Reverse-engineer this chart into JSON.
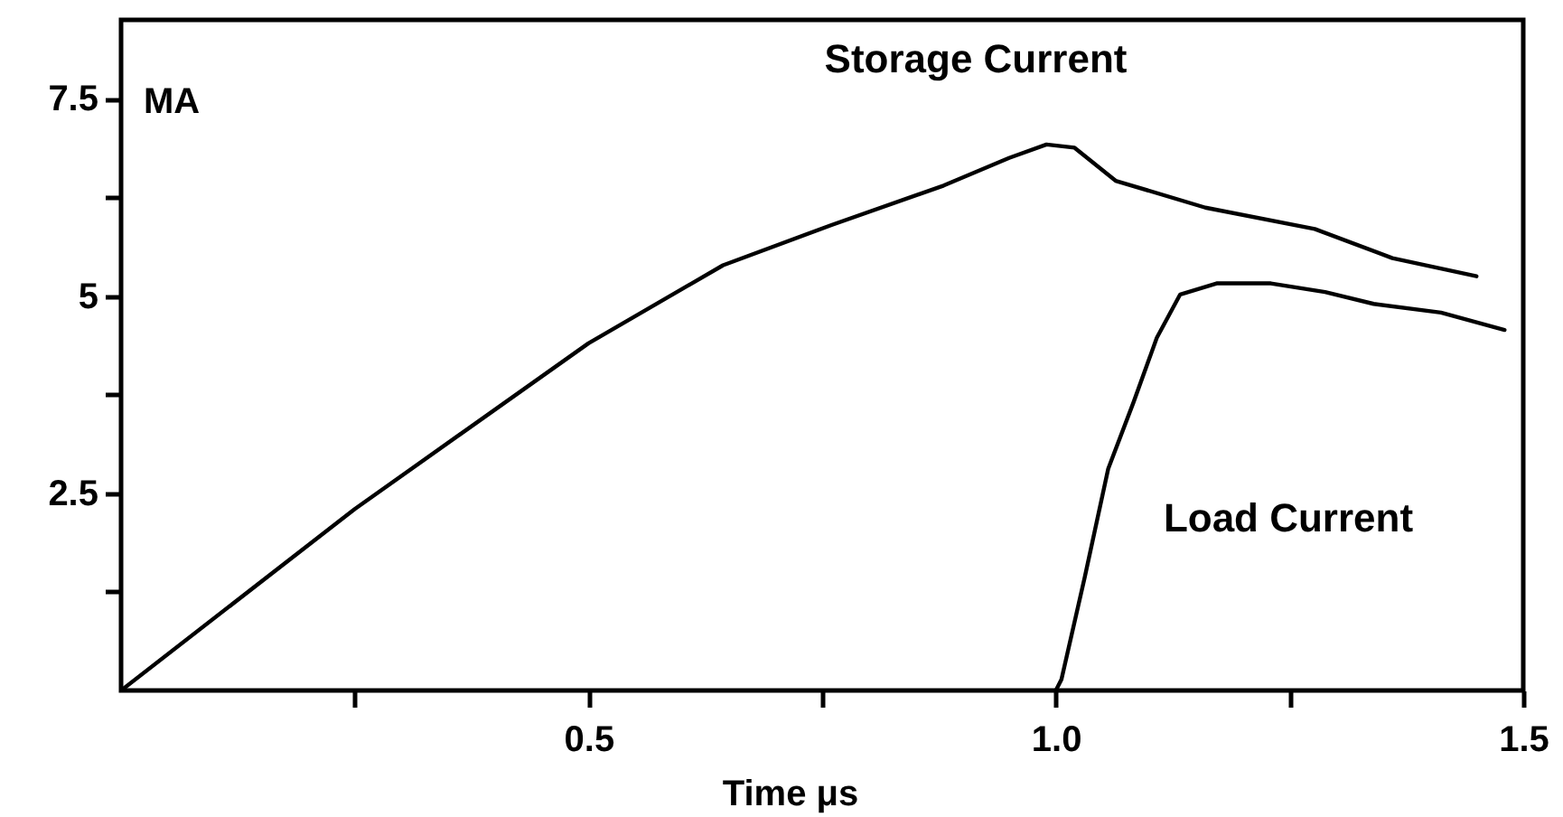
{
  "chart_data": {
    "type": "line",
    "xlabel": "Time  μs",
    "ylabel": "MA",
    "xlim": [
      0,
      1.5
    ],
    "ylim": [
      0,
      8.5
    ],
    "xticks": [
      {
        "value": 0.25,
        "label": null
      },
      0.5,
      {
        "value": 0.75,
        "label": null
      },
      {
        "value": 1,
        "label": "1.0"
      },
      {
        "value": 1.25,
        "label": null
      },
      1.5
    ],
    "yticks": [
      {
        "value": 1.25,
        "label": null
      },
      2.5,
      {
        "value": 3.75,
        "label": null
      },
      5,
      {
        "value": 6.25,
        "label": null
      },
      7.5
    ],
    "grid": false,
    "line_style": "solid",
    "marker": "none",
    "series": [
      {
        "name": "Storage Current",
        "color": "#000000",
        "x": [
          0,
          0.25,
          0.5,
          0.644,
          0.76,
          0.88,
          0.95,
          0.99,
          1.02,
          1.064,
          1.16,
          1.277,
          1.36,
          1.45
        ],
        "values": [
          0,
          2.3,
          4.4,
          5.39,
          5.9,
          6.4,
          6.75,
          6.92,
          6.88,
          6.46,
          6.12,
          5.85,
          5.48,
          5.25
        ]
      },
      {
        "name": "Load Current",
        "color": "#000000",
        "x": [
          1,
          1.006,
          1.031,
          1.056,
          1.083,
          1.108,
          1.133,
          1.172,
          1.23,
          1.288,
          1.34,
          1.412,
          1.48
        ],
        "values": [
          0,
          0.14,
          1.44,
          2.81,
          3.65,
          4.47,
          5.02,
          5.16,
          5.16,
          5.05,
          4.9,
          4.79,
          4.57
        ]
      }
    ]
  }
}
